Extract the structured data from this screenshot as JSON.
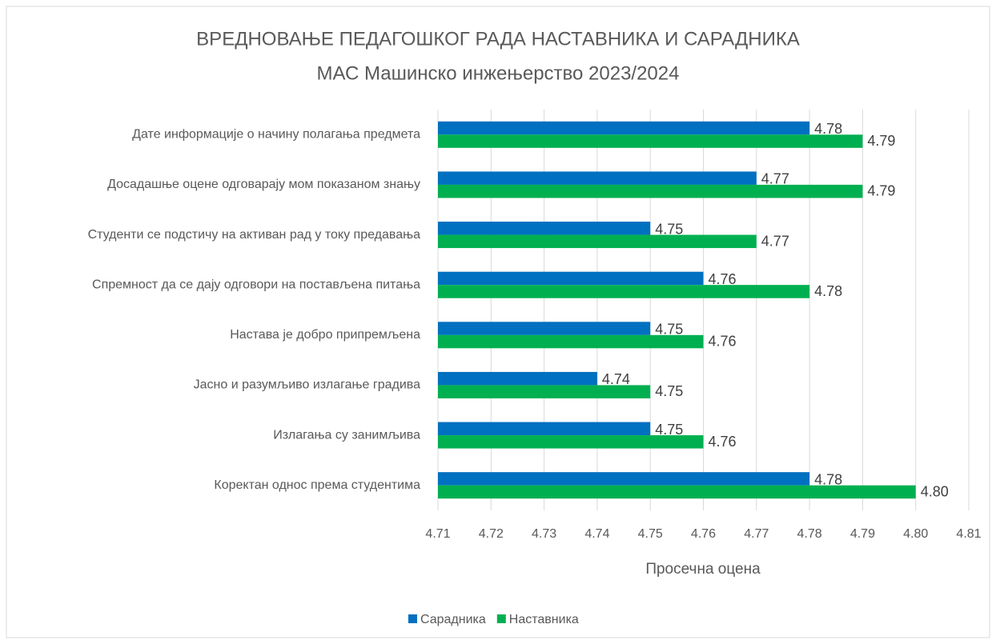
{
  "chart_data": {
    "type": "hbar",
    "title": "ВРЕДНОВАЊЕ ПЕДАГОШКОГ РАДА НАСТАВНИКА И САРАДНИКА",
    "subtitle": "МАС Машинско инжењерство 2023/2024",
    "x_label": "Просечна оцена",
    "categories": [
      "Дате информације о начину полагања предмета",
      "Досадашње оцене одговарају мом показаном знању",
      "Студенти се подстичу на активан рад у току предавања",
      "Спремност да се дају одговори на постављена питања",
      "Настава је добро припремљена",
      "Јасно и разумљиво излагање градива",
      "Излагања су занимљива",
      "Коректан однос према студентима"
    ],
    "series": [
      {
        "name": "Сарадника",
        "color": "#0070c0",
        "values": [
          4.78,
          4.77,
          4.75,
          4.76,
          4.75,
          4.74,
          4.75,
          4.78
        ]
      },
      {
        "name": "Наставника",
        "color": "#00b050",
        "values": [
          4.79,
          4.79,
          4.77,
          4.78,
          4.76,
          4.75,
          4.76,
          4.8
        ],
        "value_labels": [
          "4.79",
          "4.79",
          "4.77",
          "4.78",
          "4.76",
          "4.75",
          "4.76",
          "4.80"
        ]
      }
    ],
    "xlim": [
      4.71,
      4.81
    ],
    "xticks": [
      4.71,
      4.72,
      4.73,
      4.74,
      4.75,
      4.76,
      4.77,
      4.78,
      4.79,
      {
        "value": 4.8,
        "label": "4.80"
      },
      4.81
    ],
    "grid": true,
    "legend": "bottom"
  }
}
